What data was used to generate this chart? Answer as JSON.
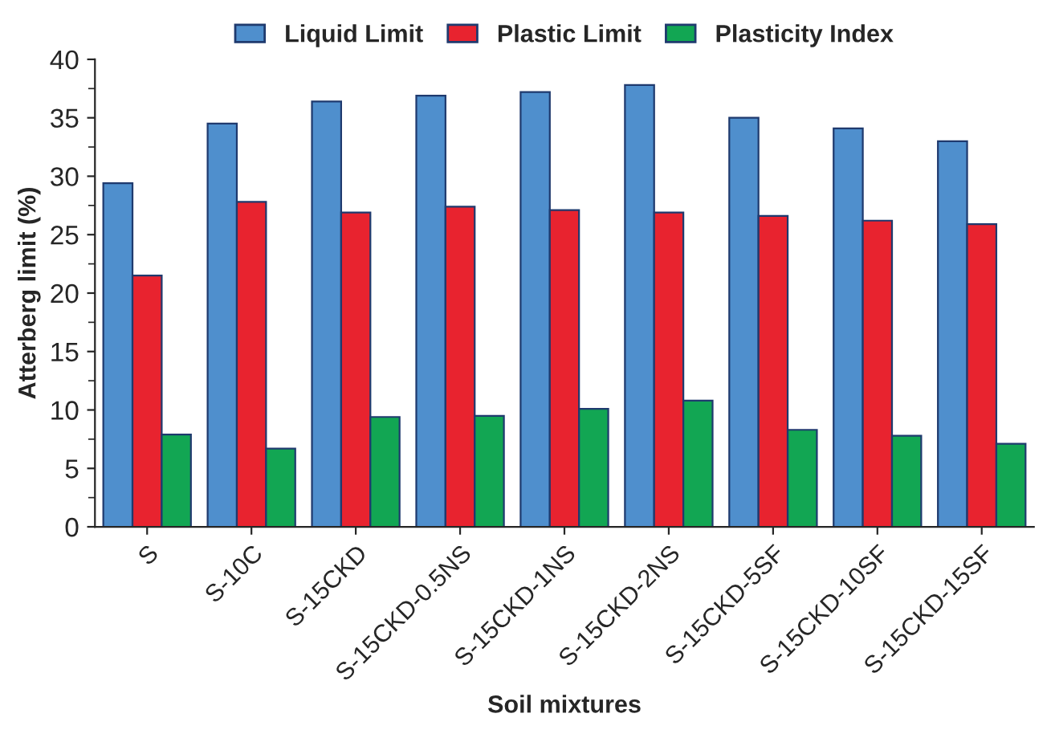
{
  "chart_data": {
    "type": "bar",
    "xlabel": "Soil mixtures",
    "ylabel": "Atterberg limit (%)",
    "categories": [
      "S",
      "S-10C",
      "S-15CKD",
      "S-15CKD-0.5NS",
      "S-15CKD-1NS",
      "S-15CKD-2NS",
      "S-15CKD-5SF",
      "S-15CKD-10SF",
      "S-15CKD-15SF"
    ],
    "series": [
      {
        "name": "Liquid Limit",
        "color": "#4f8fcd",
        "values": [
          29.4,
          34.5,
          36.4,
          36.9,
          37.2,
          37.8,
          35.0,
          34.1,
          33.0
        ]
      },
      {
        "name": "Plastic Limit",
        "color": "#e8232f",
        "values": [
          21.5,
          27.8,
          26.9,
          27.4,
          27.1,
          26.9,
          26.6,
          26.2,
          25.9
        ]
      },
      {
        "name": "Plasticity Index",
        "color": "#12a653",
        "values": [
          7.9,
          6.7,
          9.4,
          9.5,
          10.1,
          10.8,
          8.3,
          7.8,
          7.1
        ]
      }
    ],
    "ylim": [
      0,
      40
    ],
    "yticks": [
      0,
      5,
      10,
      15,
      20,
      25,
      30,
      35,
      40
    ],
    "grid": false,
    "legend": "top"
  }
}
